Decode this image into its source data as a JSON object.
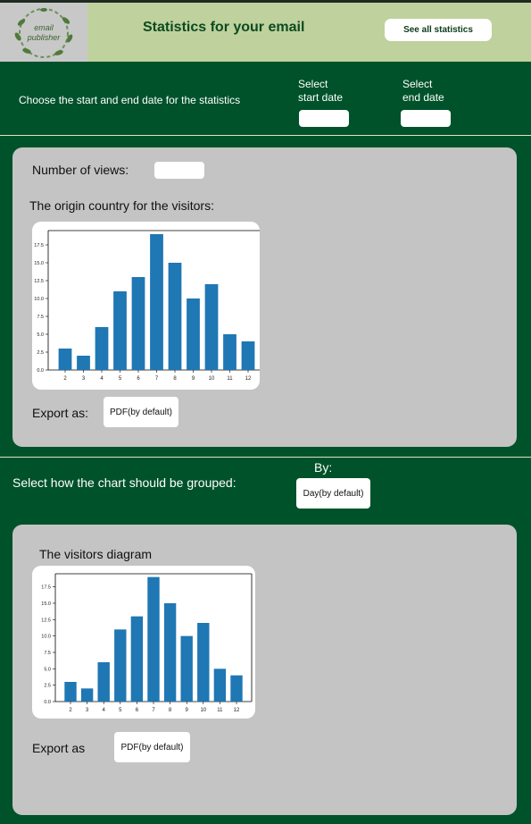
{
  "header": {
    "title": "Statistics for your email",
    "see_all_label": "See all statistics",
    "logo_text_1": "email",
    "logo_text_2": "publisher"
  },
  "date_section": {
    "prompt": "Choose the start and end date for the statistics",
    "start_label_1": "Select",
    "start_label_2": "start date",
    "end_label_1": "Select",
    "end_label_2": "end date",
    "start_value": "",
    "end_value": ""
  },
  "views_panel": {
    "views_label": "Number of views:",
    "views_value": "",
    "origin_title": "The origin country for the visitors:",
    "export_label": "Export as:",
    "export_option": "PDF(by default)"
  },
  "grouping": {
    "prompt": "Select how the chart should be grouped:",
    "by_label": "By:",
    "by_option": "Day(by default)"
  },
  "visitors_panel": {
    "title": "The visitors diagram",
    "export_label": "Export as",
    "export_option": "PDF(by default)"
  },
  "chart_data": [
    {
      "type": "bar",
      "categories": [
        "2",
        "3",
        "4",
        "5",
        "6",
        "7",
        "8",
        "9",
        "10",
        "11",
        "12"
      ],
      "values": [
        3,
        2,
        6,
        11,
        13,
        19,
        15,
        10,
        12,
        5,
        4
      ],
      "ylim": [
        0,
        19.5
      ],
      "yticks": [
        "0.0",
        "2.5",
        "5.0",
        "7.5",
        "10.0",
        "12.5",
        "15.0",
        "17.5"
      ],
      "color": "#1f77b4"
    },
    {
      "type": "bar",
      "categories": [
        "2",
        "3",
        "4",
        "5",
        "6",
        "7",
        "8",
        "9",
        "10",
        "11",
        "12"
      ],
      "values": [
        3,
        2,
        6,
        11,
        13,
        19,
        15,
        10,
        12,
        5,
        4
      ],
      "ylim": [
        0,
        19.5
      ],
      "yticks": [
        "0.0",
        "2.5",
        "5.0",
        "7.5",
        "10.0",
        "12.5",
        "15.0",
        "17.5"
      ],
      "color": "#1f77b4"
    }
  ]
}
